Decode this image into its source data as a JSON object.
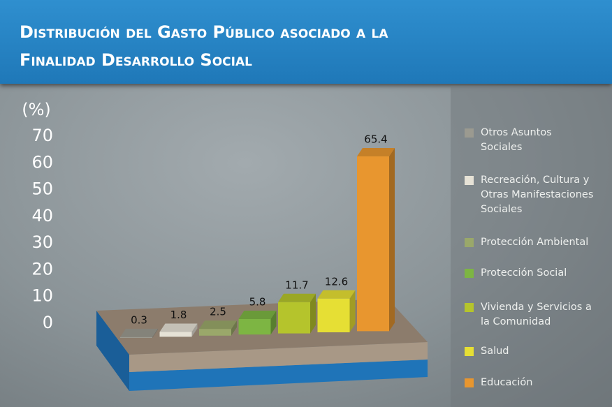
{
  "chart_data": {
    "type": "bar3d",
    "title": "Distribución del Gasto Público asociado a la Finalidad Desarrollo Social",
    "ylabel": "(%)",
    "categories": [
      "Otros Asuntos Sociales",
      "Recreación, Cultura y Otras Manifestaciones Sociales",
      "Protección Ambiental",
      "Protección Social",
      "Vivienda y Servicios a la Comunidad",
      "Salud",
      "Educación"
    ],
    "values": [
      0.3,
      1.8,
      2.5,
      5.8,
      11.7,
      12.6,
      65.4
    ],
    "colors": [
      "#9b9a90",
      "#e6e2d6",
      "#9aa86a",
      "#7db543",
      "#b5c42c",
      "#e6df34",
      "#e8962f"
    ],
    "ylim": [
      0,
      70
    ],
    "yticks": [
      0,
      10,
      20,
      30,
      40,
      50,
      60,
      70
    ]
  }
}
